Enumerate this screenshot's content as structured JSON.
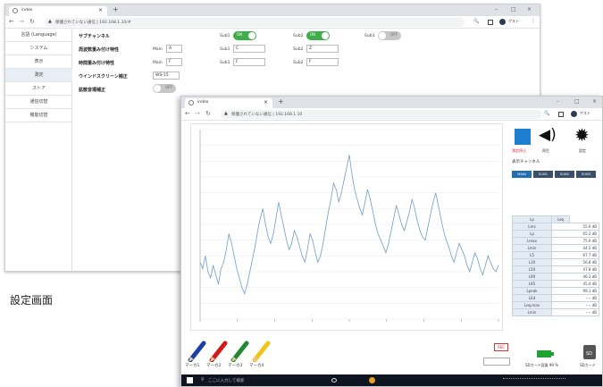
{
  "browser1": {
    "tab_title": "index",
    "address": "保護されていない通信 | 192.168.1.10/#",
    "user_label": "ゲスト"
  },
  "sidebar": {
    "items": [
      {
        "label": "言語 (Language)"
      },
      {
        "label": "システム"
      },
      {
        "label": "表示"
      },
      {
        "label": "測定"
      },
      {
        "label": "ストア"
      },
      {
        "label": "通信切替"
      },
      {
        "label": "機能切替"
      }
    ],
    "active_index": 3
  },
  "settings": {
    "sub_channel_label": "サブチャンネル",
    "freq_weight_label": "周波数重み付け特性",
    "time_weight_label": "時間重み付け特性",
    "windscreen_label": "ウインドスクリーン補正",
    "diffuse_label": "拡散音場補正",
    "main_label": "Main",
    "main_freq_value": "A",
    "main_time_value": "F",
    "windscreen_value": "WS-15",
    "sub1_label": "Sub1",
    "sub2_label": "Sub2",
    "sub3_label": "Sub3",
    "sub1_freq_value": "C",
    "sub2_freq_value": "Z",
    "sub1_time_value": "F",
    "sub2_time_value": "F",
    "toggle_on_text": "ON",
    "toggle_off_text": "OFF",
    "sub1_enabled": true,
    "sub2_enabled": true,
    "sub3_enabled": false,
    "diffuse_enabled": false
  },
  "caption": "設定画面",
  "browser2": {
    "tab_title": "index",
    "address": "保護されていない通信 | 192.168.1.10",
    "user_label": "ゲスト"
  },
  "display": {
    "stop_label": "測定停止",
    "sound_label": "再生",
    "settings_label": "設定",
    "channel_label": "表示チャンネル",
    "channel_tabs": [
      "MAIN",
      "SUB1",
      "SUB2",
      "SUB3"
    ],
    "active_channel": 0,
    "table_header": [
      "Lp",
      "Leq"
    ],
    "rows": [
      {
        "k": "Lmx",
        "v": "55.9 dB"
      },
      {
        "k": "Lp",
        "v": "65.2 dB"
      },
      {
        "k": "Lmax",
        "v": "75.9 dB"
      },
      {
        "k": "Lmin",
        "v": "44.5 dB"
      },
      {
        "k": "L5",
        "v": "67.7 dB"
      },
      {
        "k": "L10",
        "v": "56.8 dB"
      },
      {
        "k": "L50",
        "v": "47.8 dB"
      },
      {
        "k": "L90",
        "v": "46.2 dB"
      },
      {
        "k": "L95",
        "v": "45.4 dB"
      },
      {
        "k": "Lpeak",
        "v": "99.1 dB"
      },
      {
        "k": "LEd",
        "v": "--.- dB"
      },
      {
        "k": "Leq,max",
        "v": "--.- dB"
      },
      {
        "k": "Lmin",
        "v": "--.- dB"
      }
    ],
    "markers": [
      "マーカ1",
      "マーカ2",
      "マーカ3",
      "マーカ4"
    ],
    "rec_label": "REC",
    "sd_free_label": "SDカード容量 99 %",
    "sd_label": "SDカード",
    "sd_icon_text": "SD",
    "taskbar_search": "ここに入力して検索"
  },
  "chart_data": {
    "type": "line",
    "title": "",
    "xlabel": "",
    "ylabel": "",
    "series": [
      {
        "values": [
          38,
          36,
          40,
          35,
          33,
          37,
          34,
          31,
          36,
          38,
          42,
          47,
          44,
          40,
          36,
          33,
          30,
          28,
          31,
          35,
          39,
          43,
          48,
          52,
          55,
          50,
          46,
          44,
          47,
          52,
          57,
          53,
          49,
          45,
          42,
          44,
          48,
          46,
          43,
          40,
          38,
          42,
          47,
          45,
          41,
          38,
          40,
          44,
          49,
          54,
          58,
          63,
          61,
          57,
          60,
          64,
          68,
          72,
          66,
          61,
          58,
          55,
          53,
          57,
          61,
          58,
          54,
          50,
          47,
          45,
          43,
          41,
          44,
          48,
          52,
          56,
          53,
          50,
          48,
          51,
          54,
          58,
          55,
          51,
          48,
          46,
          45,
          49,
          53,
          57,
          60,
          56,
          52,
          48,
          45,
          43,
          40,
          38,
          41,
          44,
          42,
          40,
          37,
          35,
          38,
          41,
          39,
          36,
          34,
          37,
          40,
          38,
          36,
          35,
          37
        ]
      }
    ]
  }
}
